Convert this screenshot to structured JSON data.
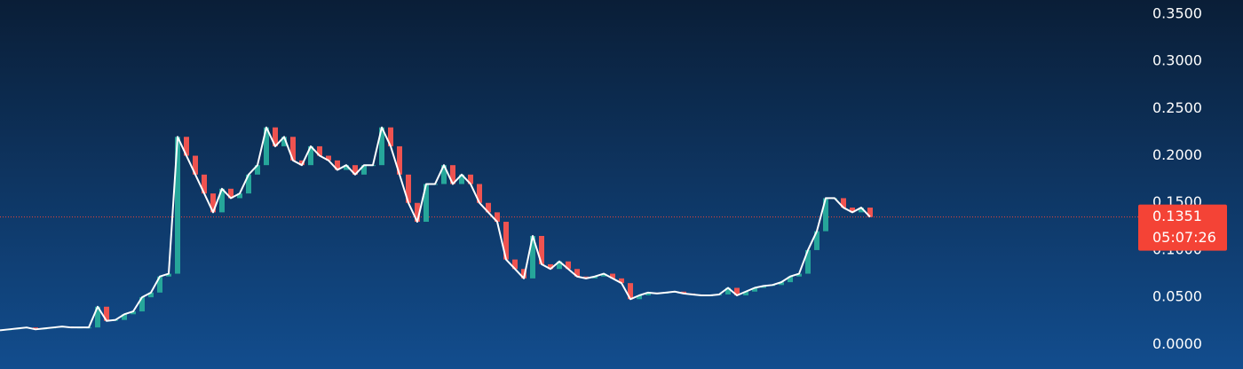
{
  "chart_data": {
    "type": "candle-line",
    "values": [
      0.015,
      0.016,
      0.017,
      0.018,
      0.016,
      0.017,
      0.018,
      0.019,
      0.018,
      0.018,
      0.018,
      0.04,
      0.025,
      0.026,
      0.032,
      0.035,
      0.05,
      0.055,
      0.072,
      0.075,
      0.22,
      0.2,
      0.18,
      0.16,
      0.14,
      0.165,
      0.155,
      0.16,
      0.18,
      0.19,
      0.23,
      0.21,
      0.22,
      0.195,
      0.19,
      0.21,
      0.2,
      0.195,
      0.185,
      0.19,
      0.18,
      0.19,
      0.19,
      0.23,
      0.21,
      0.18,
      0.15,
      0.13,
      0.17,
      0.17,
      0.19,
      0.17,
      0.18,
      0.17,
      0.15,
      0.14,
      0.13,
      0.09,
      0.08,
      0.07,
      0.115,
      0.085,
      0.08,
      0.088,
      0.08,
      0.072,
      0.07,
      0.072,
      0.075,
      0.07,
      0.065,
      0.048,
      0.052,
      0.055,
      0.054,
      0.055,
      0.056,
      0.054,
      0.053,
      0.052,
      0.052,
      0.053,
      0.06,
      0.052,
      0.056,
      0.06,
      0.062,
      0.063,
      0.066,
      0.072,
      0.075,
      0.1,
      0.12,
      0.155,
      0.155,
      0.145,
      0.14,
      0.145,
      0.1351
    ],
    "line_color": "#ffffff",
    "up_color": "#26a69a",
    "down_color": "#ef5350",
    "ylim": [
      -0.026,
      0.365
    ],
    "yticks": [
      {
        "value": 0,
        "label": "0.0000"
      },
      {
        "value": 0.05,
        "label": "0.0500"
      },
      {
        "value": 0.1,
        "label": "0.1000"
      },
      {
        "value": 0.15,
        "label": "0.1500"
      },
      {
        "value": 0.2,
        "label": "0.2000"
      },
      {
        "value": 0.25,
        "label": "0.2500"
      },
      {
        "value": 0.3,
        "label": "0.3000"
      },
      {
        "value": 0.35,
        "label": "0.3500"
      }
    ],
    "current_price": 0.1351,
    "countdown": "05:07:26",
    "price_color": "#f44336"
  }
}
